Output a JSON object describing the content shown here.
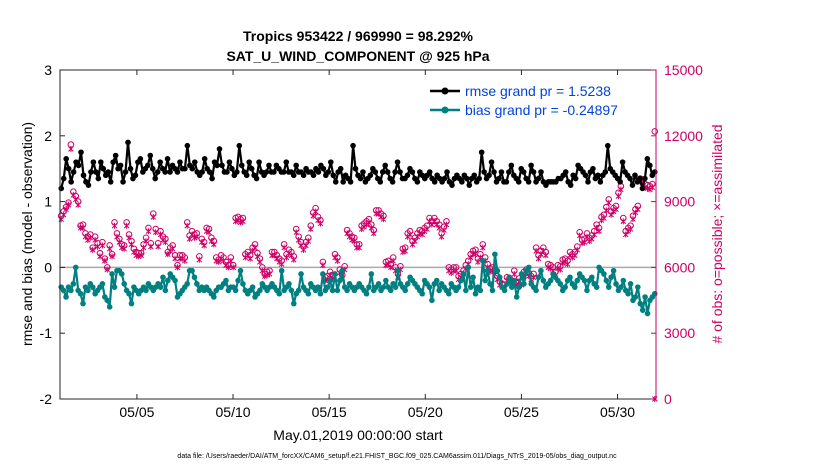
{
  "chart_data": {
    "type": "line",
    "title_line1": "Tropics 953422 / 969990 = 98.292%",
    "title_line2": "SAT_U_WIND_COMPONENT @ 925 hPa",
    "xlabel": "May.01,2019 00:00:00 start",
    "ylabel_left": "rmse and bias (model - observation)",
    "ylabel_right": "# of obs: o=possible; ×=assimilated",
    "footnote": "data file: /Users/raeder/DAI/ATM_forcXX/CAM6_setup/f.e21.FHIST_BGC.f09_025.CAM6assim.011/Diags_NTrS_2019-05/obs_diag_output.nc",
    "x_range_days": [
      0,
      31
    ],
    "x_ticks": [
      {
        "day": 4,
        "label": "05/05"
      },
      {
        "day": 9,
        "label": "05/10"
      },
      {
        "day": 14,
        "label": "05/15"
      },
      {
        "day": 19,
        "label": "05/20"
      },
      {
        "day": 24,
        "label": "05/25"
      },
      {
        "day": 29,
        "label": "05/30"
      }
    ],
    "ylim_left": [
      -2,
      3
    ],
    "left_ticks": [
      "3",
      "2",
      "1",
      "0",
      "-1",
      "-2"
    ],
    "ylim_right": [
      0,
      15000
    ],
    "right_ticks": [
      "15000",
      "12000",
      "9000",
      "6000",
      "3000",
      "0"
    ],
    "zero_line": 0,
    "colors": {
      "rmse": "#000000",
      "bias": "#008080",
      "obs": "#cc0066",
      "legend_text": "#0044dd",
      "zero": "#aaaaaa"
    },
    "series": [
      {
        "name": "rmse grand pr = 1.5238",
        "legend": "rmse grand pr = 1.5238",
        "key": "rmse",
        "axis": "left",
        "values": [
          1.2,
          1.35,
          1.65,
          1.5,
          1.3,
          1.45,
          1.6,
          1.55,
          1.75,
          1.4,
          1.3,
          1.25,
          1.45,
          1.6,
          1.45,
          1.35,
          1.6,
          1.5,
          1.4,
          1.45,
          1.3,
          1.6,
          1.7,
          1.5,
          1.55,
          1.3,
          1.45,
          1.9,
          1.5,
          1.35,
          1.4,
          1.6,
          1.65,
          1.45,
          1.5,
          1.55,
          1.7,
          1.5,
          1.35,
          1.45,
          1.6,
          1.5,
          1.45,
          1.65,
          1.45,
          1.55,
          1.5,
          1.45,
          1.6,
          1.5,
          1.5,
          1.85,
          1.55,
          1.5,
          1.6,
          1.45,
          1.4,
          1.45,
          1.65,
          1.5,
          1.45,
          1.35,
          1.6,
          1.55,
          1.8,
          1.55,
          1.45,
          1.45,
          1.6,
          1.5,
          1.4,
          1.45,
          1.85,
          1.55,
          1.45,
          1.4,
          1.6,
          1.5,
          1.4,
          1.35,
          1.6,
          1.45,
          1.4,
          1.45,
          1.55,
          1.45,
          1.45,
          1.55,
          1.5,
          1.45,
          1.45,
          1.6,
          1.45,
          1.45,
          1.4,
          1.55,
          1.45,
          1.45,
          1.4,
          1.5,
          1.45,
          1.45,
          1.4,
          1.5,
          1.45,
          1.55,
          1.5,
          1.4,
          1.45,
          1.6,
          1.4,
          1.3,
          1.45,
          1.5,
          1.3,
          1.4,
          1.35,
          1.3,
          1.85,
          1.5,
          1.4,
          1.35,
          1.45,
          1.3,
          1.35,
          1.4,
          1.5,
          1.45,
          1.35,
          1.3,
          1.45,
          1.55,
          1.45,
          1.35,
          1.3,
          1.45,
          1.6,
          1.45,
          1.35,
          1.35,
          1.4,
          1.5,
          1.45,
          1.35,
          1.3,
          1.45,
          1.4,
          1.35,
          1.4,
          1.45,
          1.35,
          1.3,
          1.4,
          1.35,
          1.3,
          1.35,
          1.45,
          1.3,
          1.25,
          1.35,
          1.4,
          1.35,
          1.3,
          1.4,
          1.35,
          1.25,
          1.35,
          1.4,
          1.3,
          1.35,
          1.75,
          1.45,
          1.35,
          1.4,
          1.6,
          1.45,
          1.3,
          1.35,
          1.45,
          1.3,
          1.3,
          1.45,
          1.55,
          1.4,
          1.35,
          1.3,
          1.5,
          1.45,
          1.35,
          1.3,
          1.55,
          1.45,
          1.3,
          1.35,
          1.45,
          1.3,
          1.25,
          1.3,
          1.3,
          1.3,
          1.3,
          1.35,
          1.35,
          1.4,
          1.45,
          1.3,
          1.25,
          1.4,
          1.35,
          1.55,
          1.5,
          1.45,
          1.4,
          1.3,
          1.45,
          1.5,
          1.35,
          1.4,
          1.3,
          1.4,
          1.45,
          1.85,
          1.5,
          1.45,
          1.4,
          1.35,
          1.3,
          1.6,
          1.45,
          1.4,
          1.35,
          1.25,
          1.4,
          1.3,
          1.35,
          1.2,
          1.35,
          1.65,
          1.55,
          1.4,
          1.45
        ]
      },
      {
        "name": "bias grand pr = -0.24897",
        "legend": "bias grand pr = -0.24897",
        "key": "bias",
        "axis": "left",
        "values": [
          -0.3,
          -0.35,
          -0.45,
          -0.3,
          -0.35,
          -0.25,
          0.0,
          -0.35,
          -0.4,
          -0.55,
          -0.3,
          -0.35,
          -0.25,
          -0.3,
          -0.4,
          -0.35,
          -0.3,
          -0.25,
          -0.45,
          -0.5,
          -0.6,
          -0.1,
          -0.3,
          -0.05,
          -0.05,
          -0.1,
          -0.25,
          -0.35,
          -0.4,
          -0.55,
          -0.3,
          -0.35,
          -0.4,
          -0.35,
          -0.3,
          -0.35,
          -0.25,
          -0.3,
          -0.35,
          -0.3,
          -0.25,
          -0.3,
          -0.15,
          -0.35,
          -0.2,
          -0.1,
          -0.15,
          -0.2,
          -0.45,
          -0.4,
          -0.35,
          -0.3,
          -0.25,
          -0.05,
          -0.05,
          -0.15,
          -0.25,
          -0.35,
          -0.3,
          -0.35,
          -0.3,
          -0.35,
          -0.4,
          -0.45,
          -0.35,
          -0.3,
          -0.3,
          -0.25,
          -0.2,
          -0.35,
          -0.3,
          -0.3,
          -0.35,
          -0.2,
          -0.05,
          -0.25,
          -0.35,
          -0.4,
          -0.35,
          -0.3,
          -0.45,
          -0.4,
          -0.35,
          -0.25,
          -0.3,
          -0.35,
          -0.3,
          -0.25,
          -0.3,
          -0.35,
          -0.4,
          -0.05,
          -0.35,
          -0.3,
          -0.25,
          -0.35,
          -0.55,
          -0.4,
          -0.35,
          -0.1,
          -0.3,
          -0.35,
          -0.4,
          -0.25,
          -0.3,
          -0.35,
          -0.3,
          -0.4,
          -0.1,
          -0.35,
          -0.3,
          -0.2,
          -0.35,
          -0.1,
          -0.35,
          -0.2,
          -0.05,
          -0.3,
          -0.35,
          -0.25,
          -0.3,
          -0.35,
          -0.3,
          -0.25,
          -0.3,
          -0.35,
          -0.4,
          -0.3,
          -0.1,
          -0.35,
          -0.3,
          -0.25,
          -0.35,
          -0.3,
          -0.2,
          -0.3,
          -0.35,
          -0.25,
          -0.3,
          -0.05,
          -0.25,
          -0.3,
          -0.35,
          -0.25,
          -0.15,
          -0.2,
          -0.25,
          -0.3,
          -0.35,
          -0.4,
          -0.2,
          -0.25,
          -0.3,
          -0.5,
          -0.25,
          -0.2,
          -0.35,
          -0.25,
          -0.3,
          -0.35,
          -0.4,
          -0.25,
          -0.3,
          -0.35,
          -0.3,
          -0.2,
          -0.1,
          -0.35,
          0.0,
          -0.3,
          -0.15,
          -0.4,
          -0.3,
          -0.35,
          0.1,
          -0.2,
          -0.05,
          -0.25,
          -0.35,
          0.2,
          -0.05,
          -0.15,
          -0.3,
          -0.35,
          -0.25,
          -0.15,
          -0.3,
          -0.2,
          -0.45,
          -0.3,
          -0.1,
          -0.25,
          -0.05,
          0.0,
          -0.25,
          -0.3,
          -0.35,
          -0.15,
          -0.05,
          -0.2,
          -0.3,
          -0.25,
          -0.2,
          -0.1,
          -0.15,
          -0.2,
          -0.25,
          -0.35,
          -0.3,
          -0.2,
          -0.15,
          -0.25,
          -0.3,
          -0.2,
          -0.1,
          -0.15,
          -0.2,
          -0.35,
          -0.2,
          -0.15,
          -0.25,
          -0.3,
          0.0,
          -0.05,
          -0.1,
          -0.2,
          -0.3,
          -0.15,
          -0.05,
          -0.25,
          -0.35,
          -0.3,
          -0.2,
          -0.35,
          -0.4,
          -0.25,
          -0.5,
          -0.45,
          -0.3,
          -0.55,
          -0.65,
          -0.45,
          -0.7,
          -0.5,
          -0.45,
          -0.4
        ]
      },
      {
        "name": "obs possible",
        "key": "obs_possible",
        "axis": "right",
        "marker": "o",
        "values": [
          8350,
          8550,
          8750,
          8950,
          11600,
          9450,
          9250,
          9000,
          7900,
          7950,
          7550,
          7400,
          7500,
          6900,
          7400,
          7100,
          6650,
          7150,
          6400,
          6000,
          7000,
          6600,
          8050,
          7550,
          7300,
          7050,
          7000,
          8050,
          7500,
          7200,
          6850,
          6700,
          6650,
          6650,
          7050,
          7350,
          7800,
          7100,
          8450,
          7750,
          7100,
          7650,
          7400,
          7300,
          6700,
          6900,
          7000,
          6550,
          6100,
          6550,
          6550,
          6450,
          8050,
          7450,
          7650,
          7500,
          7550,
          6500,
          7300,
          7150,
          7800,
          7750,
          7350,
          7200,
          6450,
          6350,
          6550,
          6450,
          6250,
          6100,
          6450,
          6100,
          8250,
          8300,
          8200,
          8250,
          6600,
          6700,
          6550,
          6900,
          7050,
          6650,
          6400,
          6000,
          5700,
          5800,
          5850,
          6700,
          6700,
          6550,
          6400,
          6300,
          7050,
          6600,
          6800,
          6700,
          6500,
          7750,
          7400,
          7150,
          6950,
          7150,
          7350,
          7900,
          8500,
          8700,
          8300,
          8150,
          6250,
          5550,
          5600,
          5800,
          5650,
          6600,
          6450,
          5900,
          5650,
          6050,
          7700,
          7550,
          7400,
          7350,
          7050,
          7050,
          7900,
          8000,
          8100,
          8200,
          7950,
          7700,
          8600,
          8600,
          8450,
          8350,
          6250,
          6300,
          6150,
          6450,
          6000,
          5700,
          6050,
          6850,
          6900,
          7550,
          7650,
          7200,
          7350,
          7550,
          7700,
          7650,
          7800,
          7900,
          8250,
          8100,
          8250,
          8100,
          7950,
          7550,
          7850,
          8100,
          6000,
          5900,
          6000,
          6000,
          5600,
          5700,
          5850,
          6100,
          6300,
          6600,
          6750,
          6800,
          6400,
          6600,
          7050,
          6450,
          6150,
          5950,
          6000,
          5850,
          5600,
          5350,
          5250,
          5200,
          5550,
          5500,
          5400,
          5850,
          5350,
          5500,
          5350,
          5800,
          5900,
          5750,
          5600,
          5700,
          6900,
          6550,
          6750,
          6900,
          6700,
          6150,
          6100,
          6000,
          5800,
          6100,
          6050,
          6350,
          6400,
          6300,
          6700,
          6600,
          6700,
          6950,
          7600,
          7250,
          7300,
          7550,
          7350,
          7450,
          7650,
          7950,
          7800,
          8300,
          8400,
          8750,
          9100,
          8550,
          8700,
          8800,
          9400,
          9700,
          8250,
          7650,
          7800,
          7900,
          8350,
          8650,
          8800,
          10050,
          10000,
          9800,
          9750,
          9700,
          9800,
          12200
        ]
      },
      {
        "name": "obs assimilated",
        "key": "obs_assimilated",
        "axis": "right",
        "marker": "x",
        "values": [
          8200,
          8400,
          8650,
          8850,
          11400,
          9300,
          9100,
          8850,
          7800,
          7800,
          7400,
          7250,
          7350,
          6800,
          7250,
          6950,
          6500,
          7000,
          6300,
          5900,
          6850,
          6500,
          7900,
          7400,
          7150,
          6900,
          6850,
          7900,
          7350,
          7050,
          6700,
          6550,
          6500,
          6550,
          6900,
          7200,
          7650,
          6950,
          8300,
          7600,
          6950,
          7500,
          7250,
          7150,
          6600,
          6750,
          6850,
          6400,
          6000,
          6400,
          6400,
          6300,
          7900,
          7300,
          7500,
          7350,
          7400,
          6350,
          7150,
          7000,
          7650,
          7600,
          7200,
          7050,
          6300,
          6250,
          6400,
          6300,
          6100,
          6000,
          6300,
          6000,
          8100,
          8150,
          8050,
          8100,
          6450,
          6550,
          6400,
          6750,
          6900,
          6500,
          6250,
          5850,
          5600,
          5650,
          5700,
          6550,
          6550,
          6400,
          6250,
          6150,
          6900,
          6450,
          6650,
          6550,
          6350,
          7600,
          7250,
          7000,
          6800,
          7000,
          7200,
          7750,
          8350,
          8550,
          8150,
          8000,
          6100,
          5400,
          5450,
          5650,
          5500,
          6450,
          6300,
          5750,
          5500,
          5900,
          7550,
          7400,
          7250,
          7200,
          6900,
          6900,
          7750,
          7850,
          7950,
          8050,
          7800,
          7550,
          8450,
          8450,
          8300,
          8200,
          6100,
          6150,
          6000,
          6300,
          5850,
          5550,
          5900,
          6700,
          6750,
          7400,
          7500,
          7050,
          7200,
          7400,
          7550,
          7500,
          7650,
          7750,
          8100,
          7950,
          8100,
          7950,
          7800,
          7400,
          7700,
          7950,
          5850,
          5750,
          5850,
          5850,
          5450,
          5550,
          5700,
          5950,
          6150,
          6450,
          6600,
          6650,
          6250,
          6450,
          6900,
          6300,
          6000,
          5800,
          5850,
          5700,
          5450,
          5200,
          5100,
          5050,
          5400,
          5350,
          5250,
          5700,
          5200,
          5350,
          5200,
          5650,
          5750,
          5600,
          5450,
          5550,
          6750,
          6400,
          6600,
          6750,
          6550,
          6000,
          5950,
          5850,
          5650,
          5950,
          5900,
          6200,
          6250,
          6150,
          6550,
          6450,
          6550,
          6800,
          7450,
          7100,
          7150,
          7400,
          7200,
          7300,
          7500,
          7800,
          7650,
          8150,
          8250,
          8600,
          8950,
          8400,
          8550,
          8650,
          9250,
          9550,
          8100,
          7500,
          7650,
          7750,
          8200,
          8500,
          8650,
          9900,
          9850,
          9650,
          9600,
          9550,
          9650,
          0
        ]
      }
    ]
  }
}
